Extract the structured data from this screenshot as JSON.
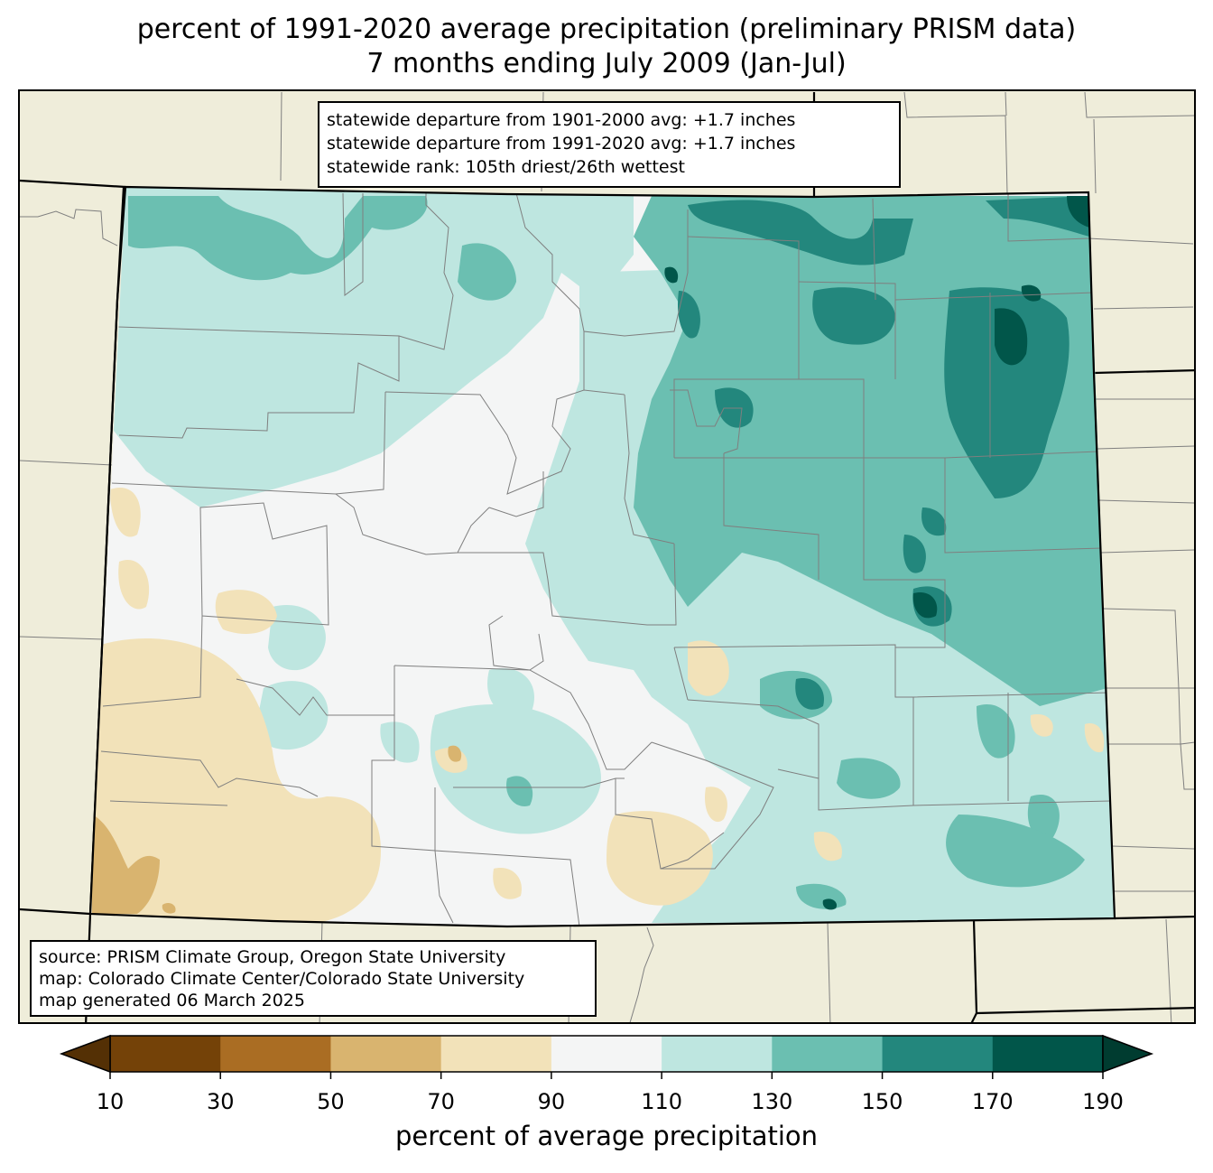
{
  "title": {
    "line1": "percent of 1991-2020 average precipitation (preliminary PRISM data)",
    "line2": "7 months ending July 2009 (Jan-Jul)"
  },
  "stats": {
    "line1": "statewide departure from 1901-2000 avg: +1.7 inches",
    "line2": "statewide departure from 1991-2020 avg: +1.7 inches",
    "line3": "statewide rank: 105th driest/26th wettest"
  },
  "source": {
    "line1": "source: PRISM Climate Group, Oregon State University",
    "line2": "map: Colorado Climate Center/Colorado State University",
    "line3": "map generated 06 March 2025"
  },
  "colorbar": {
    "label": "percent of average precipitation",
    "ticks": [
      "10",
      "30",
      "50",
      "70",
      "90",
      "110",
      "130",
      "150",
      "170",
      "190"
    ],
    "under_color": "#543005",
    "over_color": "#003c30",
    "bins": [
      {
        "min": 10,
        "max": 30,
        "color": "#744208"
      },
      {
        "min": 30,
        "max": 50,
        "color": "#aa6d23"
      },
      {
        "min": 50,
        "max": 70,
        "color": "#d9b46f"
      },
      {
        "min": 70,
        "max": 90,
        "color": "#f2e2b9"
      },
      {
        "min": 90,
        "max": 110,
        "color": "#f4f5f5"
      },
      {
        "min": 110,
        "max": 130,
        "color": "#bee6e0"
      },
      {
        "min": 130,
        "max": 150,
        "color": "#6bbfb1"
      },
      {
        "min": 150,
        "max": 170,
        "color": "#23877d"
      },
      {
        "min": 170,
        "max": 190,
        "color": "#01564a"
      }
    ]
  },
  "map": {
    "land_color": "#efedda",
    "county_line_color": "#7f7f7f",
    "state_line_color": "#000000"
  }
}
